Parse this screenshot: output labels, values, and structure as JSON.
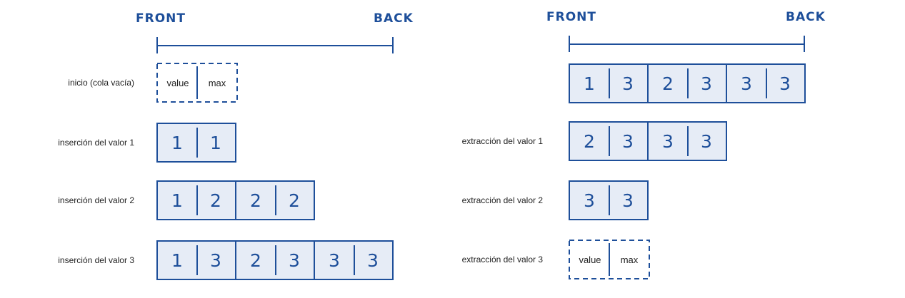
{
  "colors": {
    "ink": "#1e4f9a",
    "fill": "#e6ecf6",
    "label": "#222222"
  },
  "headers": {
    "front": "FRONT",
    "back": "BACK"
  },
  "placeholder": {
    "value": "value",
    "max": "max"
  },
  "left_panel": {
    "rows": [
      {
        "label": "inicio (cola vacía)",
        "empty": true,
        "cells": []
      },
      {
        "label": "inserción del valor 1",
        "empty": false,
        "cells": [
          [
            "1",
            "1"
          ]
        ]
      },
      {
        "label": "inserción del valor 2",
        "empty": false,
        "cells": [
          [
            "1",
            "2"
          ],
          [
            "2",
            "2"
          ]
        ]
      },
      {
        "label": "inserción del valor 3",
        "empty": false,
        "cells": [
          [
            "1",
            "3"
          ],
          [
            "2",
            "3"
          ],
          [
            "3",
            "3"
          ]
        ]
      }
    ]
  },
  "right_panel": {
    "rows": [
      {
        "label": "",
        "empty": false,
        "cells": [
          [
            "1",
            "3"
          ],
          [
            "2",
            "3"
          ],
          [
            "3",
            "3"
          ]
        ]
      },
      {
        "label": "extracción del valor 1",
        "empty": false,
        "cells": [
          [
            "2",
            "3"
          ],
          [
            "3",
            "3"
          ]
        ]
      },
      {
        "label": "extracción del valor 2",
        "empty": false,
        "cells": [
          [
            "3",
            "3"
          ]
        ]
      },
      {
        "label": "extracción del valor 3",
        "empty": true,
        "cells": []
      }
    ]
  }
}
